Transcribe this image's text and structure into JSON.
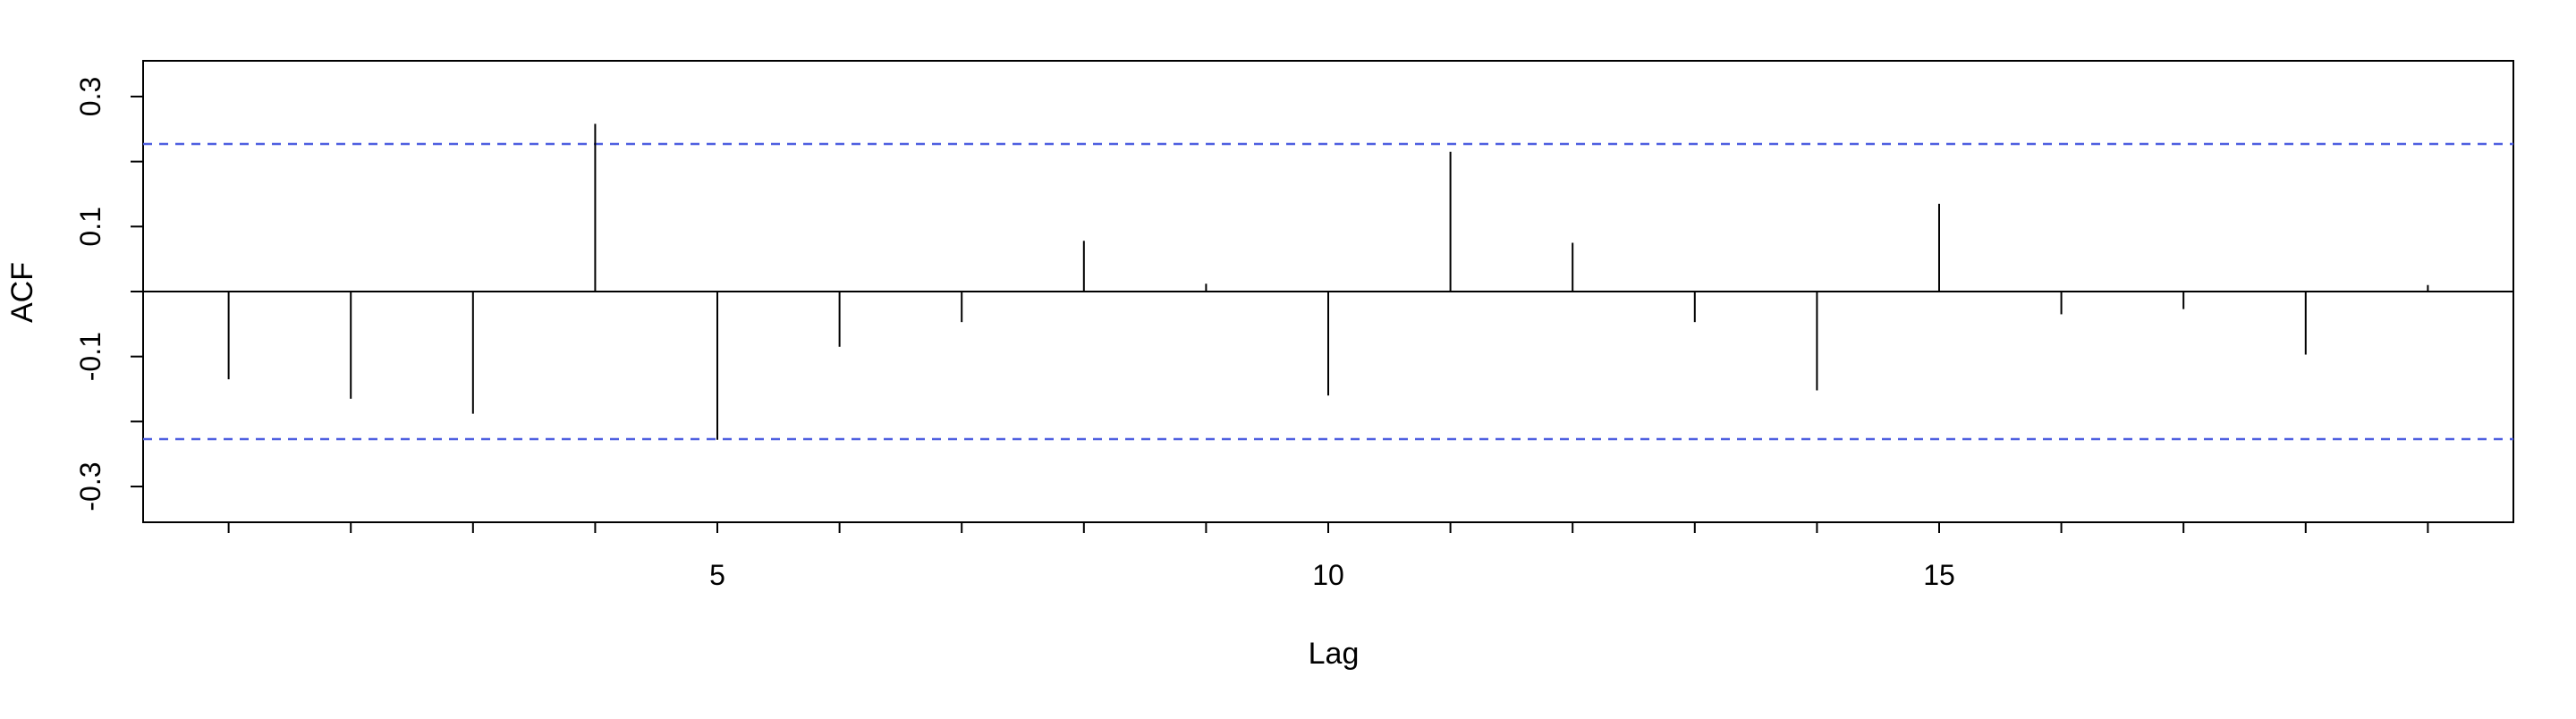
{
  "chart_data": {
    "type": "bar",
    "style": "acf-spikes",
    "title": "",
    "xlabel": "Lag",
    "ylabel": "ACF",
    "x": [
      1,
      2,
      3,
      4,
      5,
      6,
      7,
      8,
      9,
      10,
      11,
      12,
      13,
      14,
      15,
      16,
      17,
      18,
      19
    ],
    "values": [
      -0.135,
      -0.165,
      -0.188,
      0.258,
      -0.228,
      -0.085,
      -0.047,
      0.078,
      0.012,
      -0.16,
      0.215,
      0.075,
      -0.047,
      -0.152,
      0.135,
      -0.035,
      -0.027,
      -0.097,
      0.01
    ],
    "confidence_limit": 0.227,
    "xlim": [
      0.3,
      19.7
    ],
    "ylim": [
      -0.355,
      0.355
    ],
    "x_ticks": [
      1,
      2,
      3,
      4,
      5,
      6,
      7,
      8,
      9,
      10,
      11,
      12,
      13,
      14,
      15,
      16,
      17,
      18,
      19
    ],
    "x_tick_labels": [
      {
        "value": 5,
        "label": "5"
      },
      {
        "value": 10,
        "label": "10"
      },
      {
        "value": 15,
        "label": "15"
      }
    ],
    "y_ticks": [
      -0.3,
      -0.2,
      -0.1,
      0.0,
      0.1,
      0.2,
      0.3
    ],
    "y_tick_labels": [
      {
        "value": -0.3,
        "label": "-0.3"
      },
      {
        "value": -0.1,
        "label": "-0.1"
      },
      {
        "value": 0.1,
        "label": "0.1"
      },
      {
        "value": 0.3,
        "label": "0.3"
      }
    ],
    "grid": false,
    "colors": {
      "spikes": "#000000",
      "confidence": "#4e5fe0",
      "axes": "#000000"
    }
  }
}
